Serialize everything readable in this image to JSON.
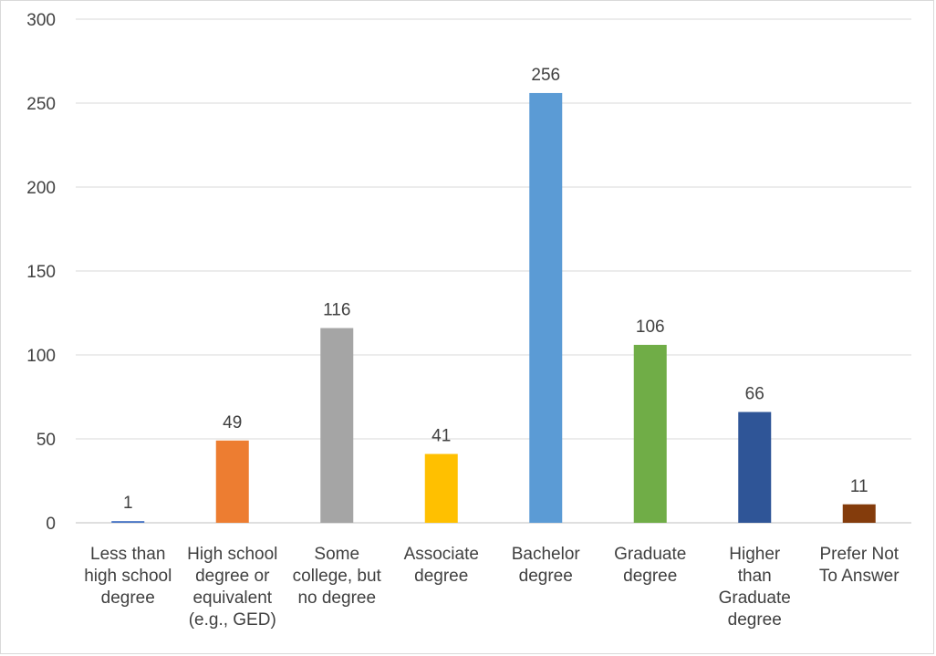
{
  "chart_data": {
    "type": "bar",
    "title": "",
    "xlabel": "",
    "ylabel": "",
    "categories": [
      [
        "Less than",
        "high school",
        "degree"
      ],
      [
        "High school",
        "degree or",
        "equivalent",
        "(e.g., GED)"
      ],
      [
        "Some",
        "college, but",
        "no degree"
      ],
      [
        "Associate",
        "degree"
      ],
      [
        "Bachelor",
        "degree"
      ],
      [
        "Graduate",
        "degree"
      ],
      [
        "Higher",
        "than",
        "Graduate",
        "degree"
      ],
      [
        "Prefer Not",
        "To Answer"
      ]
    ],
    "values": [
      1,
      49,
      116,
      41,
      256,
      106,
      66,
      11
    ],
    "ylim": [
      0,
      300
    ],
    "yticks": [
      0,
      50,
      100,
      150,
      200,
      250,
      300
    ],
    "grid": true,
    "legend": "none",
    "colors": [
      "#4472c4",
      "#ed7d31",
      "#a5a5a5",
      "#ffc000",
      "#5b9bd5",
      "#70ad47",
      "#2f5597",
      "#843c0c"
    ],
    "gridline_color": "#d9d9d9",
    "axis_color": "#bfbfbf"
  }
}
